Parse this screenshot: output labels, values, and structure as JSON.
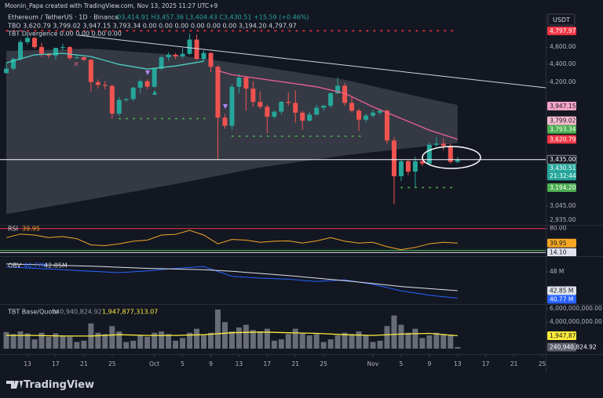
{
  "header": {
    "credit": "Moonin_Papa created with TradingView.com, Nov 13, 2025 11:27 UTC+9",
    "currency": "USDT",
    "logo": "TradingView"
  },
  "chart_data": [
    {
      "type": "candlestick",
      "title": "Ethereum / TetherUS · 1D · Binance",
      "ohlc": "O3,414.91 H3,457.36 L3,404.43 C3,430.51 +15.59 (+0.46%)",
      "indicator_lines": [
        "TBO 3,620.79 3,799.02 3,947.15 3,793.34 0.00 0.00 0.00 0.00 0.00 0.00 3,194.20 4,797.97",
        "TBT Divergence 0.00 0.00 0.00 0.00"
      ],
      "log_scale": true,
      "grid": false,
      "up_color": "#26a69a",
      "down_color": "#ef5350",
      "xlim": [
        -3.9,
        73.5
      ],
      "xticks": [
        {
          "value": 0,
          "label": "13"
        },
        {
          "value": 4,
          "label": "17"
        },
        {
          "value": 8,
          "label": "21"
        },
        {
          "value": 12,
          "label": "25"
        },
        {
          "value": 18,
          "label": "Oct"
        },
        {
          "value": 22,
          "label": "5"
        },
        {
          "value": 26,
          "label": "9"
        },
        {
          "value": 30,
          "label": "13"
        },
        {
          "value": 34,
          "label": "17"
        },
        {
          "value": 38,
          "label": "21"
        },
        {
          "value": 42,
          "label": "25"
        },
        {
          "value": 49,
          "label": "Nov"
        },
        {
          "value": 53,
          "label": "5"
        },
        {
          "value": 57,
          "label": "9"
        },
        {
          "value": 61,
          "label": "13"
        },
        {
          "value": 65,
          "label": "17"
        },
        {
          "value": 69,
          "label": "21"
        },
        {
          "value": 73,
          "label": "25"
        }
      ],
      "ylim": [
        2900,
        4900
      ],
      "yticks": [
        {
          "value": 4600,
          "label": "4,600.00"
        },
        {
          "value": 4400,
          "label": "4,400.00"
        },
        {
          "value": 4200,
          "label": "4,200.00"
        },
        {
          "value": 3290,
          "label": "3,290.00"
        },
        {
          "value": 3045,
          "label": "3,045.00"
        },
        {
          "value": 2935,
          "label": "2,935.00"
        }
      ],
      "x": [
        -3,
        -2,
        -1,
        0,
        1,
        2,
        3,
        4,
        5,
        6,
        7,
        8,
        9,
        10,
        11,
        12,
        13,
        14,
        15,
        16,
        17,
        18,
        19,
        20,
        21,
        22,
        23,
        24,
        25,
        26,
        27,
        28,
        29,
        30,
        31,
        32,
        33,
        34,
        35,
        36,
        37,
        38,
        39,
        40,
        41,
        42,
        43,
        44,
        45,
        46,
        47,
        48,
        49,
        50,
        51,
        52,
        53,
        54,
        55,
        56,
        57,
        58,
        59,
        60,
        61
      ],
      "open": [
        4300,
        4350,
        4460,
        4660,
        4710,
        4600,
        4520,
        4500,
        4590,
        4600,
        4470,
        4480,
        4450,
        4200,
        4170,
        4160,
        3870,
        4010,
        4020,
        4140,
        4210,
        4150,
        4350,
        4480,
        4510,
        4490,
        4520,
        4690,
        4460,
        4530,
        4370,
        3830,
        3750,
        4150,
        4250,
        4130,
        3990,
        3940,
        3840,
        3890,
        3990,
        3980,
        3880,
        3800,
        3860,
        3930,
        3950,
        4080,
        4160,
        3980,
        3900,
        3810,
        3850,
        3880,
        3900,
        3610,
        3290,
        3420,
        3330,
        3420,
        3400,
        3570,
        3580,
        3560,
        3414.91
      ],
      "high": [
        4420,
        4480,
        4690,
        4770,
        4720,
        4650,
        4530,
        4590,
        4640,
        4610,
        4510,
        4490,
        4460,
        4230,
        4210,
        4170,
        4040,
        4030,
        4150,
        4230,
        4230,
        4360,
        4500,
        4540,
        4530,
        4590,
        4760,
        4750,
        4560,
        4540,
        4390,
        3870,
        4180,
        4290,
        4260,
        4210,
        4100,
        3960,
        3900,
        4000,
        4090,
        4110,
        3900,
        3890,
        3960,
        3960,
        4090,
        4250,
        4190,
        4040,
        3920,
        3870,
        3910,
        3910,
        3910,
        3640,
        3430,
        3430,
        3460,
        3460,
        3590,
        3640,
        3630,
        3580,
        3457.36
      ],
      "low": [
        4290,
        4330,
        4440,
        4630,
        4580,
        4480,
        4470,
        4450,
        4560,
        4450,
        4460,
        4440,
        4100,
        4130,
        4120,
        3820,
        3850,
        3990,
        4000,
        4080,
        4120,
        4140,
        4330,
        4440,
        4460,
        4470,
        4510,
        4450,
        4430,
        4310,
        3440,
        3720,
        3710,
        4080,
        3900,
        3940,
        3920,
        3680,
        3820,
        3860,
        3950,
        3780,
        3710,
        3790,
        3850,
        3900,
        3930,
        4070,
        3950,
        3880,
        3700,
        3780,
        3830,
        3860,
        3580,
        3060,
        3250,
        3300,
        3200,
        3380,
        3380,
        3550,
        3520,
        3400,
        3404.43
      ],
      "close": [
        4350,
        4460,
        4660,
        4710,
        4600,
        4520,
        4500,
        4590,
        4600,
        4470,
        4480,
        4450,
        4200,
        4170,
        4160,
        3870,
        4010,
        4020,
        4140,
        4210,
        4150,
        4350,
        4480,
        4510,
        4490,
        4520,
        4690,
        4460,
        4530,
        4370,
        3830,
        3750,
        4150,
        4250,
        4130,
        3990,
        3940,
        3840,
        3890,
        3990,
        3980,
        3880,
        3800,
        3860,
        3930,
        3950,
        4080,
        4160,
        3980,
        3900,
        3810,
        3850,
        3880,
        3900,
        3610,
        3290,
        3420,
        3330,
        3420,
        3400,
        3570,
        3580,
        3560,
        3415,
        3430.51
      ],
      "band": {
        "color": "#b2b5be",
        "x": [
          -3,
          9,
          21,
          33,
          45,
          57,
          61
        ],
        "upper": [
          4554,
          4581,
          4508,
          4373,
          4226,
          4020,
          3958
        ],
        "lower": [
          2982,
          3099,
          3224,
          3365,
          3473,
          3560,
          3584
        ]
      },
      "lines": [
        {
          "color": "#4dd0c4",
          "x": [
            -3,
            1,
            5,
            9,
            13,
            17,
            21,
            25
          ],
          "values": [
            4416,
            4508,
            4526,
            4489,
            4398,
            4344,
            4380,
            4434
          ]
        },
        {
          "color": "#f06292",
          "x": [
            27,
            29,
            33,
            37,
            41,
            45,
            49,
            53,
            57,
            61
          ],
          "values": [
            4326,
            4281,
            4237,
            4193,
            4149,
            4080,
            3939,
            3822,
            3708,
            3620.79
          ]
        }
      ],
      "level_style": "dotted",
      "levels": [
        {
          "value": 4797.97,
          "color": "#f23645",
          "from": -3,
          "to": 61
        },
        {
          "value": 3820,
          "color": "#4caf50",
          "from": 13,
          "to": 26
        },
        {
          "value": 3650,
          "color": "#4caf50",
          "from": 29,
          "to": 48
        },
        {
          "value": 3194.2,
          "color": "#4caf50",
          "from": 53,
          "to": 61
        }
      ],
      "price_labels": [
        {
          "value": 4797.97,
          "label": "4,797.97",
          "color": "#f23645"
        },
        {
          "value": 3947.15,
          "label": "3,947.15",
          "color": "#f8a5c8"
        },
        {
          "value": 3799.02,
          "label": "3,799.02",
          "color": "#f8bbd0"
        },
        {
          "value": 3793.34,
          "label": "3,793.34",
          "color": "#4caf50"
        },
        {
          "value": 3620.79,
          "label": "3,620.79",
          "color": "#f23645"
        },
        {
          "value": 3435,
          "label": "3,435.00",
          "color": "#131722",
          "line": true
        },
        {
          "value": 3430.51,
          "label": "3,430.51",
          "color": "#26a69a",
          "countdown": "21:32:44"
        },
        {
          "value": 3194.2,
          "label": "3,194.20",
          "color": "#4caf50"
        }
      ]
    },
    {
      "type": "line",
      "title": "RSI",
      "ylim": [
        6,
        88
      ],
      "yticks": [
        {
          "value": 80,
          "label": "80.00"
        }
      ],
      "x": [
        -3,
        -1,
        1,
        3,
        5,
        7,
        9,
        11,
        13,
        15,
        17,
        19,
        21,
        23,
        25,
        27,
        29,
        31,
        33,
        35,
        37,
        39,
        41,
        43,
        45,
        47,
        49,
        51,
        53,
        55,
        57,
        59,
        61
      ],
      "series": [
        {
          "color": "#f5a623",
          "last_value_label": true,
          "values": [
            55,
            65,
            62,
            55,
            58,
            52,
            35,
            33,
            38,
            45,
            48,
            62,
            64,
            75,
            62,
            38,
            50,
            48,
            42,
            45,
            46,
            40,
            46,
            55,
            45,
            40,
            42,
            30,
            22,
            28,
            38,
            42,
            39.95
          ]
        }
      ],
      "level_style": "solid",
      "levels": [
        {
          "value": 80,
          "color": "#f23645"
        },
        {
          "value": 20,
          "color": "#4caf50"
        },
        {
          "value": 14.1,
          "color": "#e0e3eb",
          "label": "14.10"
        }
      ]
    },
    {
      "type": "line",
      "title": "OBV",
      "legend_values": [
        "40.77M",
        "42.85M"
      ],
      "ylim": [
        39400000,
        51900000
      ],
      "yticks": [
        {
          "value": 48000000,
          "label": "48 M"
        }
      ],
      "x": [
        -3,
        1,
        5,
        9,
        13,
        17,
        21,
        25,
        29,
        33,
        37,
        41,
        45,
        49,
        53,
        57,
        61
      ],
      "series": [
        {
          "color": "#2962ff",
          "values": [
            49400000,
            49000000,
            48600000,
            48200000,
            47800000,
            48300000,
            49000000,
            49500000,
            46800000,
            46300000,
            46000000,
            45400000,
            45800000,
            44600000,
            42800000,
            41600000,
            40770000
          ]
        },
        {
          "color": "#e0e3eb",
          "values": [
            50200000,
            50000000,
            49800000,
            49600000,
            49300000,
            49000000,
            48800000,
            48600000,
            48200000,
            47600000,
            47000000,
            46300000,
            45600000,
            44800000,
            44000000,
            43400000,
            42850000
          ]
        }
      ],
      "price_labels": [
        {
          "value": 42850000,
          "label": "42.85 M",
          "color": "#e0e3eb"
        },
        {
          "value": 40770000,
          "label": "40.77 M",
          "color": "#2962ff"
        }
      ]
    },
    {
      "type": "bar",
      "title": "TBT Base/Quote",
      "legend_values": [
        "240,940,824.92",
        "1,947,877,313.07"
      ],
      "color": "#787b86",
      "ylim": [
        0,
        6500000000
      ],
      "yticks": [
        {
          "value": 4000000000,
          "label": "4,000,000,000.00"
        },
        {
          "value": 6000000000,
          "label": "6,000,000,000.00"
        }
      ],
      "x": [
        -3,
        -2,
        -1,
        0,
        1,
        2,
        3,
        4,
        5,
        6,
        7,
        8,
        9,
        10,
        11,
        12,
        13,
        14,
        15,
        16,
        17,
        18,
        19,
        20,
        21,
        22,
        23,
        24,
        25,
        26,
        27,
        28,
        29,
        30,
        31,
        32,
        33,
        34,
        35,
        36,
        37,
        38,
        39,
        40,
        41,
        42,
        43,
        44,
        45,
        46,
        47,
        48,
        49,
        50,
        51,
        52,
        53,
        54,
        55,
        56,
        57,
        58,
        59,
        60,
        61
      ],
      "values": [
        2500000000,
        2200000000,
        2600000000,
        2300000000,
        1400000000,
        2400000000,
        1800000000,
        2300000000,
        2000000000,
        1800000000,
        1000000000,
        1200000000,
        3800000000,
        2400000000,
        2200000000,
        3400000000,
        2600000000,
        1000000000,
        1200000000,
        2000000000,
        1800000000,
        2400000000,
        2600000000,
        2200000000,
        1200000000,
        1600000000,
        2400000000,
        3000000000,
        2000000000,
        2400000000,
        5900000000,
        4000000000,
        2600000000,
        3200000000,
        3600000000,
        2800000000,
        2600000000,
        3000000000,
        1200000000,
        1400000000,
        2200000000,
        3000000000,
        2400000000,
        2000000000,
        2200000000,
        1000000000,
        1400000000,
        2000000000,
        2400000000,
        2200000000,
        2600000000,
        2000000000,
        1000000000,
        1200000000,
        3400000000,
        5000000000,
        3600000000,
        2400000000,
        3000000000,
        1600000000,
        2000000000,
        2400000000,
        2200000000,
        2100000000,
        240940824.92
      ],
      "line": {
        "color": "#ffeb3b",
        "x": [
          -3,
          1,
          5,
          9,
          13,
          17,
          21,
          25,
          29,
          33,
          37,
          41,
          45,
          49,
          53,
          57,
          61
        ],
        "values": [
          2000000000,
          2000000000,
          1900000000,
          1900000000,
          2100000000,
          2000000000,
          2000000000,
          2100000000,
          2400000000,
          2500000000,
          2400000000,
          2300000000,
          2100000000,
          2000000000,
          2200000000,
          2300000000,
          1947877313.07
        ]
      },
      "price_labels": [
        {
          "value": 1947877313.07,
          "label": "1,947,877,313.07",
          "color": "#ffeb3b"
        },
        {
          "value": 240940824.92,
          "label": "240,940,824.92",
          "color": "#5d606b"
        }
      ]
    }
  ]
}
